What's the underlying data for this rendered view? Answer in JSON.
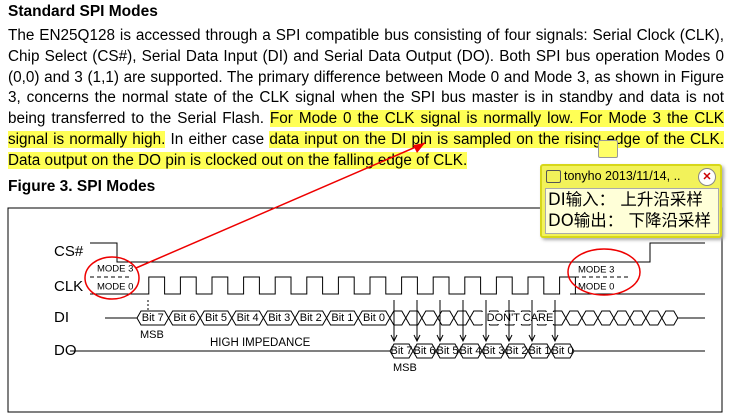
{
  "heading": "Standard SPI Modes",
  "paragraph": [
    {
      "text": "The EN25Q128 is accessed through a SPI compatible bus consisting of four signals: Serial Clock (CLK), Chip Select (CS#), Serial Data Input (DI) and Serial Data Output (DO). Both SPI bus operation Modes 0 (0,0) and 3 (1,1) are supported. The primary difference between Mode 0 and Mode 3, as shown in Figure 3, concerns the normal state of the CLK signal when the SPI bus master is in standby and data is not being transferred to the Serial Flash. ",
      "highlighted": false
    },
    {
      "text": "For Mode 0 the CLK signal is normally low. For Mode 3 the CLK signal is normally high.",
      "highlighted": true
    },
    {
      "text": " In either case ",
      "highlighted": false
    },
    {
      "text": "data input on the DI pin is sampled on the rising edge of the CLK. Data output on the DO pin is clocked out on the falling edge of CLK.",
      "highlighted": true
    }
  ],
  "figure_title": "Figure 3. SPI Modes",
  "comment": {
    "author": "tonyho 2013/11/14, ..",
    "lines": [
      "DI输入： 上升沿采样",
      "DO输出： 下降沿采样"
    ]
  },
  "diagram": {
    "signals": [
      "CS#",
      "CLK",
      "DI",
      "DO"
    ],
    "mode_labels": [
      "MODE 3",
      "MODE 0"
    ],
    "di_bits": [
      "Bit 7",
      "Bit 6",
      "Bit 5",
      "Bit 4",
      "Bit 3",
      "Bit 2",
      "Bit 1",
      "Bit 0"
    ],
    "do_bits": [
      "Bit 7",
      "Bit 6",
      "Bit 5",
      "Bit 4",
      "Bit 3",
      "Bit 2",
      "Bit 1",
      "Bit 0"
    ],
    "msb": "MSB",
    "dont_care": "DON'T CARE",
    "high_impedance": "HIGH IMPEDANCE"
  }
}
